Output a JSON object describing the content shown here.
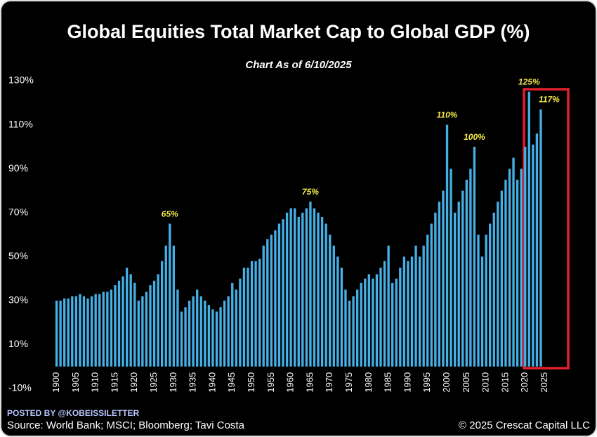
{
  "chart_data": {
    "type": "bar",
    "title": "Global Equities Total Market Cap to Global GDP (%)",
    "subtitle": "Chart As of 6/10/2025",
    "posted_by": "POSTED BY @KOBEISSILETTER",
    "source": "Source: World Bank; MSCI; Bloomberg; Tavi Costa",
    "copyright": "© 2025 Crescat Capital LLC",
    "x": [
      1900,
      1901,
      1902,
      1903,
      1904,
      1905,
      1906,
      1907,
      1908,
      1909,
      1910,
      1911,
      1912,
      1913,
      1914,
      1915,
      1916,
      1917,
      1918,
      1919,
      1920,
      1921,
      1922,
      1923,
      1924,
      1925,
      1926,
      1927,
      1928,
      1929,
      1930,
      1931,
      1932,
      1933,
      1934,
      1935,
      1936,
      1937,
      1938,
      1939,
      1940,
      1941,
      1942,
      1943,
      1944,
      1945,
      1946,
      1947,
      1948,
      1949,
      1950,
      1951,
      1952,
      1953,
      1954,
      1955,
      1956,
      1957,
      1958,
      1959,
      1960,
      1961,
      1962,
      1963,
      1964,
      1965,
      1966,
      1967,
      1968,
      1969,
      1970,
      1971,
      1972,
      1973,
      1974,
      1975,
      1976,
      1977,
      1978,
      1979,
      1980,
      1981,
      1982,
      1983,
      1984,
      1985,
      1986,
      1987,
      1988,
      1989,
      1990,
      1991,
      1992,
      1993,
      1994,
      1995,
      1996,
      1997,
      1998,
      1999,
      2000,
      2001,
      2002,
      2003,
      2004,
      2005,
      2006,
      2007,
      2008,
      2009,
      2010,
      2011,
      2012,
      2013,
      2014,
      2015,
      2016,
      2017,
      2018,
      2019,
      2020,
      2021,
      2022,
      2023,
      2024
    ],
    "values": [
      30,
      30,
      31,
      31,
      32,
      32,
      33,
      32,
      31,
      32,
      33,
      33,
      34,
      34,
      35,
      37,
      39,
      41,
      45,
      42,
      38,
      30,
      32,
      34,
      37,
      39,
      42,
      48,
      55,
      65,
      55,
      35,
      25,
      27,
      30,
      32,
      35,
      32,
      30,
      28,
      26,
      25,
      27,
      30,
      32,
      38,
      35,
      40,
      45,
      45,
      48,
      48,
      49,
      55,
      58,
      60,
      62,
      65,
      67,
      70,
      72,
      72,
      68,
      70,
      72,
      75,
      72,
      70,
      68,
      65,
      60,
      55,
      50,
      45,
      35,
      30,
      32,
      35,
      38,
      40,
      42,
      40,
      42,
      45,
      48,
      55,
      38,
      40,
      45,
      50,
      48,
      50,
      55,
      50,
      55,
      60,
      65,
      70,
      75,
      80,
      110,
      90,
      70,
      75,
      80,
      85,
      90,
      100,
      60,
      50,
      60,
      65,
      70,
      75,
      80,
      85,
      90,
      95,
      85,
      90,
      100,
      125,
      101,
      106,
      117
    ],
    "color": "#45b0e6",
    "xlim": [
      1899,
      2033
    ],
    "xticks": [
      1900,
      1905,
      1910,
      1915,
      1920,
      1925,
      1930,
      1935,
      1940,
      1945,
      1950,
      1955,
      1960,
      1965,
      1970,
      1975,
      1980,
      1985,
      1990,
      1995,
      2000,
      2005,
      2010,
      2015,
      2020,
      2025
    ],
    "ylim": [
      -10,
      130
    ],
    "yticks": [
      {
        "value": -10,
        "label": "-10%"
      },
      {
        "value": 10,
        "label": "10%"
      },
      {
        "value": 30,
        "label": "30%"
      },
      {
        "value": 50,
        "label": "50%"
      },
      {
        "value": 70,
        "label": "70%"
      },
      {
        "value": 90,
        "label": "90%"
      },
      {
        "value": 110,
        "label": "110%"
      },
      {
        "value": 130,
        "label": "130%"
      }
    ],
    "grid": false,
    "annotations": [
      {
        "text": "65%",
        "x": 1929
      },
      {
        "text": "75%",
        "x": 1965
      },
      {
        "text": "110%",
        "x": 2000
      },
      {
        "text": "100%",
        "x": 2007
      },
      {
        "text": "125%",
        "x": 2021
      },
      {
        "text": "117%",
        "x": 2024
      }
    ]
  }
}
